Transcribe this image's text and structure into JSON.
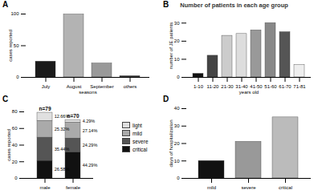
{
  "chart_data": [
    {
      "type": "bar",
      "title": "A",
      "x_label": "seasons",
      "y_label": "cases reported",
      "categories": [
        "July",
        "August",
        "September",
        "others"
      ],
      "values": [
        25,
        100,
        22,
        2
      ],
      "colors": [
        "#1a1a1a",
        "#b3b3b3",
        "#999999",
        "#333333"
      ],
      "ylim": [
        0,
        100
      ],
      "yticks": [
        0,
        50,
        100
      ]
    },
    {
      "type": "bar",
      "title": "B",
      "subtitle": "Number of patients in each age group",
      "x_label": "years old",
      "y_label": "number of JE patients",
      "categories": [
        "1-10",
        "11-20",
        "21-30",
        "31-40",
        "41-50",
        "51-60",
        "61-70",
        "71-81"
      ],
      "values": [
        2,
        12,
        23,
        24,
        26,
        30,
        25,
        7
      ],
      "colors": [
        "#111111",
        "#444444",
        "#cccccc",
        "#dddddd",
        "#999999",
        "#888888",
        "#555555",
        "#eeeeee"
      ],
      "ylim": [
        0,
        35
      ],
      "yticks": [
        0,
        10,
        20,
        30
      ]
    },
    {
      "type": "bar",
      "title": "C",
      "stacked": true,
      "y_label": "cases reported",
      "categories": [
        "male",
        "female"
      ],
      "category_notes": [
        "n=79",
        "n=70"
      ],
      "series": [
        {
          "name": "light",
          "color": "#e0e0e0",
          "values": [
            10,
            3
          ],
          "percent_labels": [
            "12.66%",
            "4.29%"
          ]
        },
        {
          "name": "mild",
          "color": "#aaaaaa",
          "values": [
            20,
            19
          ],
          "percent_labels": [
            "25.32%",
            "27.14%"
          ]
        },
        {
          "name": "severe",
          "color": "#555555",
          "values": [
            28,
            17
          ],
          "percent_labels": [
            "35.44%",
            "24.29%"
          ]
        },
        {
          "name": "critical",
          "color": "#111111",
          "values": [
            21,
            31
          ],
          "percent_labels": [
            "26.58%",
            "44.29%"
          ]
        }
      ],
      "legend": "right",
      "ylim": [
        0,
        80
      ],
      "yticks": [
        0,
        20,
        40,
        60,
        80
      ]
    },
    {
      "type": "bar",
      "title": "D",
      "y_label": "days of hospitalization",
      "categories": [
        "mild",
        "severe",
        "critical"
      ],
      "values": [
        10,
        21,
        35
      ],
      "colors": [
        "#111111",
        "#999999",
        "#bbbbbb"
      ],
      "ylim": [
        0,
        40
      ],
      "yticks": [
        0,
        10,
        20,
        30,
        40
      ]
    }
  ]
}
